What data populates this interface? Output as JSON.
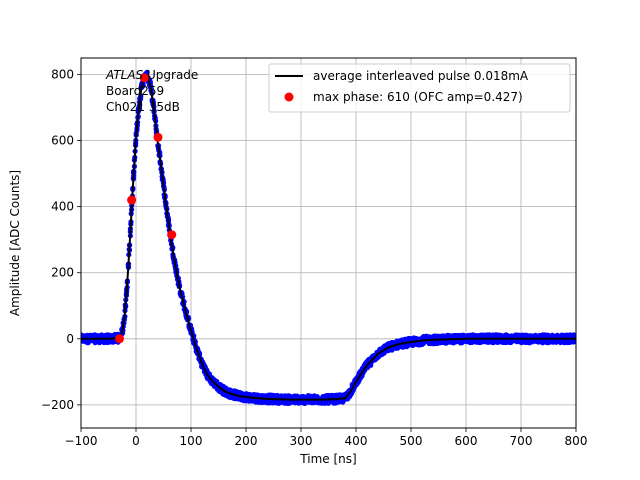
{
  "chart_data": {
    "type": "scatter",
    "xlabel": "Time [ns]",
    "ylabel": "Amplitude [ADC Counts]",
    "xlim": [
      -100,
      800
    ],
    "ylim": [
      -270,
      850
    ],
    "xticks": [
      -100,
      0,
      100,
      200,
      300,
      400,
      500,
      600,
      700,
      800
    ],
    "yticks": [
      -200,
      0,
      200,
      400,
      600,
      800
    ],
    "grid": true,
    "legend_position": "top-right",
    "annotation": {
      "lines": [
        "ATLAS Upgrade",
        " Board259",
        " Ch021 35dB"
      ],
      "italic_prefix": "ATLAS"
    },
    "series": [
      {
        "name": "average interleaved pulse 0.018mA",
        "kind": "line",
        "color": "#000000",
        "x": [
          -100,
          -50,
          -30,
          -25,
          -20,
          -15,
          -10,
          -5,
          0,
          5,
          10,
          15,
          20,
          25,
          30,
          35,
          40,
          45,
          50,
          55,
          60,
          65,
          70,
          75,
          80,
          90,
          100,
          110,
          120,
          130,
          140,
          150,
          160,
          170,
          180,
          190,
          200,
          220,
          240,
          260,
          280,
          300,
          320,
          340,
          360,
          380,
          390,
          400,
          410,
          420,
          440,
          460,
          480,
          500,
          520,
          540,
          560,
          580,
          600,
          650,
          700,
          750,
          800
        ],
        "y": [
          0,
          0,
          2,
          20,
          80,
          190,
          330,
          480,
          610,
          700,
          760,
          790,
          795,
          775,
          725,
          660,
          590,
          530,
          465,
          400,
          340,
          285,
          235,
          190,
          150,
          85,
          25,
          -30,
          -75,
          -110,
          -130,
          -145,
          -157,
          -165,
          -170,
          -174,
          -176,
          -180,
          -182,
          -183,
          -184,
          -184,
          -184,
          -184,
          -183,
          -180,
          -160,
          -130,
          -105,
          -80,
          -45,
          -25,
          -15,
          -10,
          -5,
          -3,
          -2,
          -1,
          0,
          0,
          0,
          0,
          0
        ]
      },
      {
        "name": "",
        "kind": "scatter-band",
        "color": "#0000ff",
        "spread": 12
      },
      {
        "name": "max phase: 610 (OFC amp=0.427)",
        "kind": "scatter",
        "color": "#ff0000",
        "x": [
          -30,
          -8,
          15,
          40,
          65
        ],
        "y": [
          0,
          420,
          790,
          610,
          315
        ]
      }
    ]
  }
}
